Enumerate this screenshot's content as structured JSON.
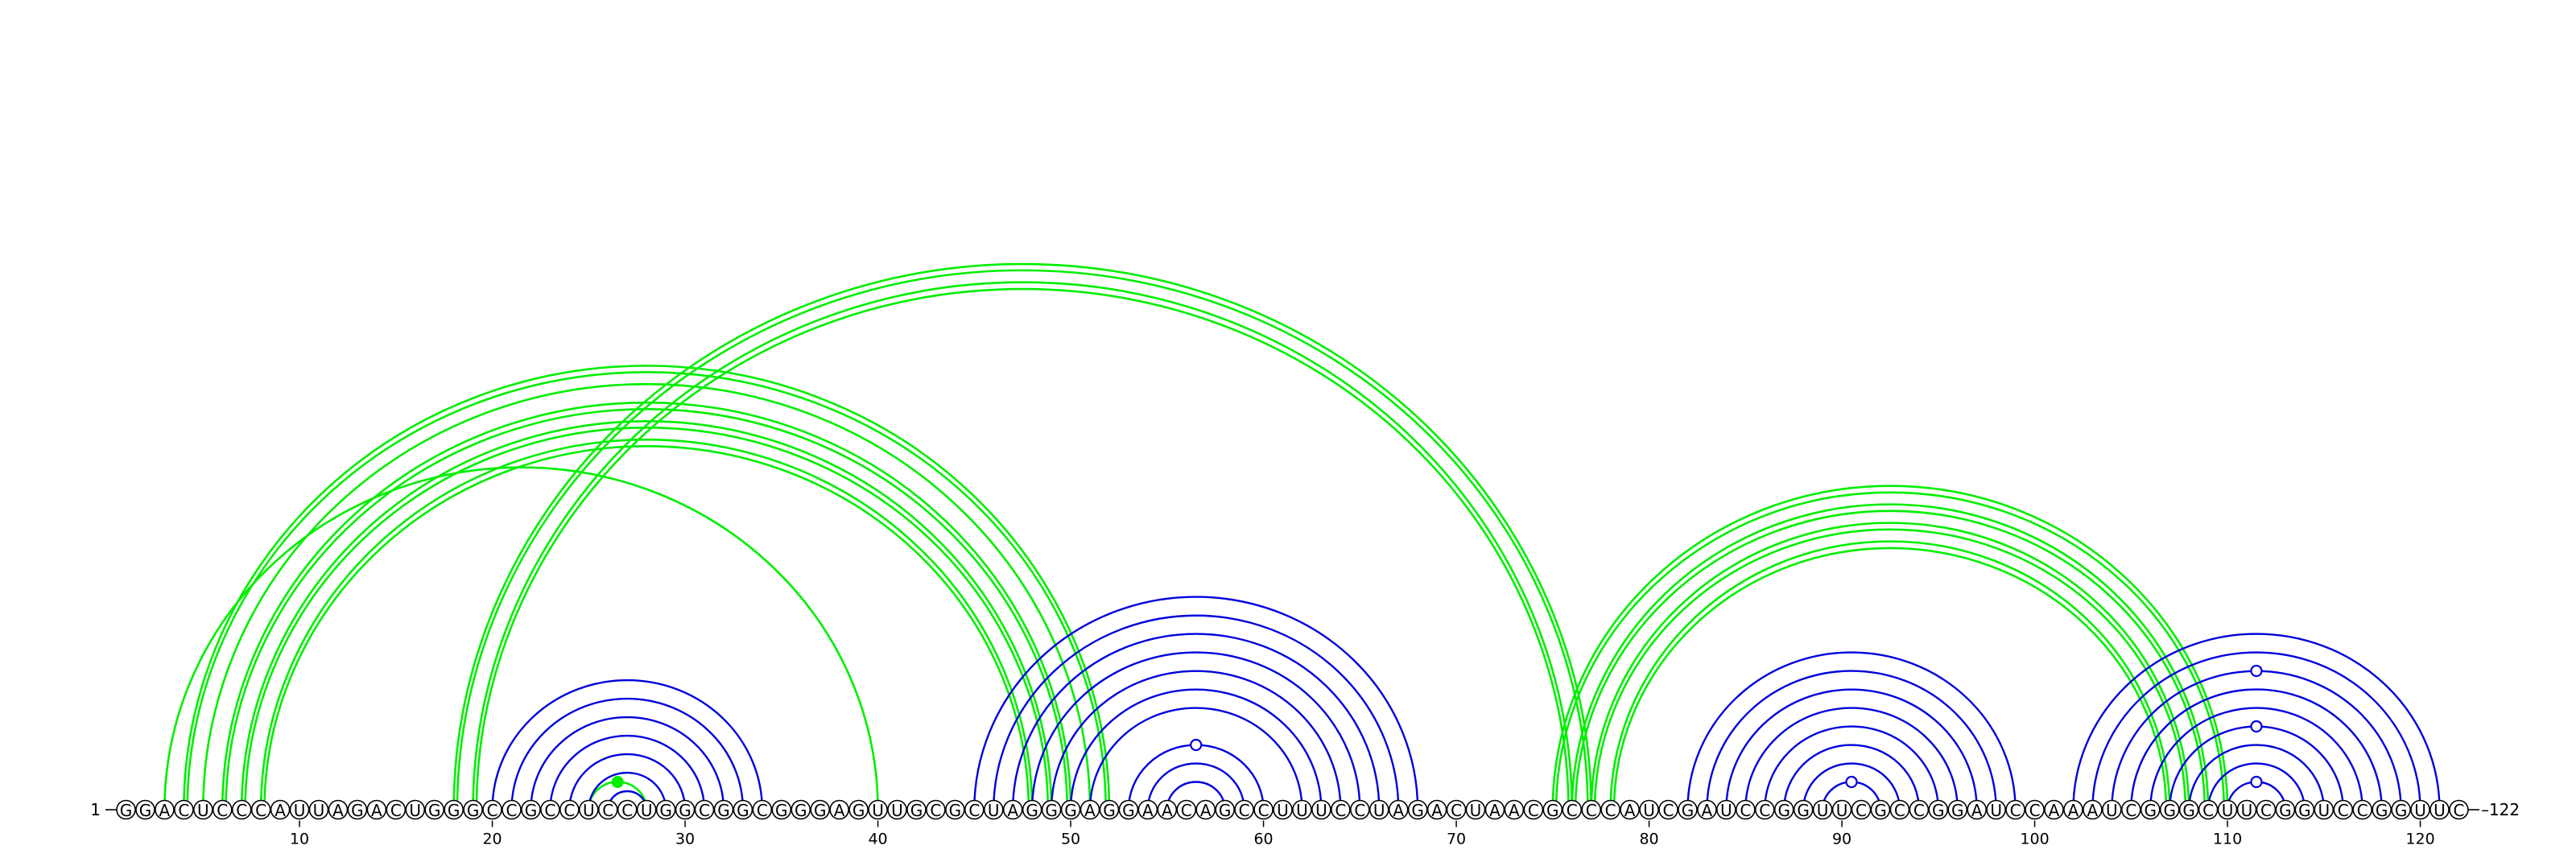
{
  "diagram": {
    "type": "rna-arc-diagram",
    "sequence": "GGACUCCCAUUAGACUGGGCCGCCUCCUGGCGGCGGGAGUUGCGCUAGGGAGGAACAGCCUUUCCUAGACUAACGCCCAUCGAUCCGGUUCGCCGGAUCCAAAUCGGGCUUCGGUCCGGUUC",
    "start_label": "1",
    "end_label": "122",
    "tick_positions": [
      10,
      20,
      30,
      40,
      50,
      60,
      70,
      80,
      90,
      100,
      110,
      120
    ],
    "colors": {
      "green_arcs": "#00ee00",
      "blue_arcs": "#0000dd",
      "nucleotide_stroke": "#000000",
      "background": "#ffffff"
    },
    "green_arcs": [
      {
        "i": 3,
        "j": 40,
        "double": false
      },
      {
        "i": 4,
        "j": 52,
        "double": true
      },
      {
        "i": 5,
        "j": 51,
        "double": false
      },
      {
        "i": 6,
        "j": 50,
        "double": true
      },
      {
        "i": 7,
        "j": 49,
        "double": true
      },
      {
        "i": 8,
        "j": 48,
        "double": true
      },
      {
        "i": 18,
        "j": 77,
        "double": true
      },
      {
        "i": 19,
        "j": 76,
        "double": true
      },
      {
        "i": 25,
        "j": 28,
        "double": false
      },
      {
        "i": 75,
        "j": 110,
        "double": true
      },
      {
        "i": 76,
        "j": 109,
        "double": true
      },
      {
        "i": 77,
        "j": 108,
        "double": true
      },
      {
        "i": 78,
        "j": 107,
        "double": true
      }
    ],
    "blue_arcs": [
      {
        "i": 20,
        "j": 34
      },
      {
        "i": 21,
        "j": 33
      },
      {
        "i": 22,
        "j": 32
      },
      {
        "i": 23,
        "j": 31
      },
      {
        "i": 24,
        "j": 30
      },
      {
        "i": 25,
        "j": 29
      },
      {
        "i": 26,
        "j": 28
      },
      {
        "i": 45,
        "j": 68
      },
      {
        "i": 46,
        "j": 67
      },
      {
        "i": 47,
        "j": 66
      },
      {
        "i": 48,
        "j": 65
      },
      {
        "i": 49,
        "j": 64
      },
      {
        "i": 50,
        "j": 63
      },
      {
        "i": 51,
        "j": 62
      },
      {
        "i": 53,
        "j": 60
      },
      {
        "i": 54,
        "j": 59
      },
      {
        "i": 55,
        "j": 58
      },
      {
        "i": 82,
        "j": 99
      },
      {
        "i": 83,
        "j": 98
      },
      {
        "i": 84,
        "j": 97
      },
      {
        "i": 85,
        "j": 96
      },
      {
        "i": 86,
        "j": 95
      },
      {
        "i": 87,
        "j": 94
      },
      {
        "i": 88,
        "j": 93
      },
      {
        "i": 89,
        "j": 92
      },
      {
        "i": 102,
        "j": 121
      },
      {
        "i": 103,
        "j": 120
      },
      {
        "i": 104,
        "j": 119
      },
      {
        "i": 105,
        "j": 118
      },
      {
        "i": 106,
        "j": 117
      },
      {
        "i": 107,
        "j": 116
      },
      {
        "i": 108,
        "j": 115
      },
      {
        "i": 109,
        "j": 114
      },
      {
        "i": 110,
        "j": 113
      }
    ],
    "open_markers": [
      {
        "i": 53,
        "j": 60
      },
      {
        "i": 89,
        "j": 92
      },
      {
        "i": 104,
        "j": 119
      },
      {
        "i": 107,
        "j": 116
      },
      {
        "i": 110,
        "j": 113
      }
    ],
    "filled_markers": [
      {
        "i": 25,
        "j": 28
      }
    ]
  }
}
